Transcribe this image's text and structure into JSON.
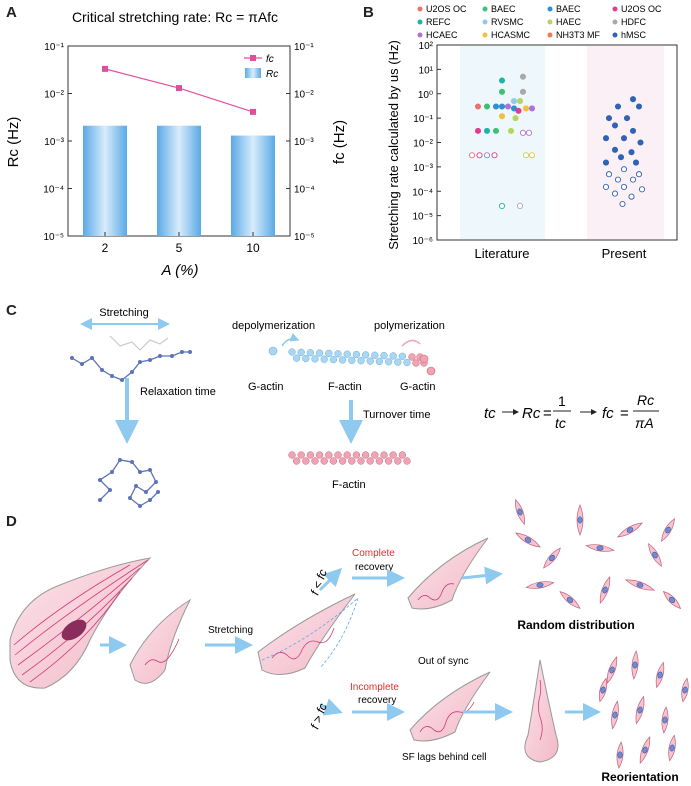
{
  "panel_labels": {
    "a": "A",
    "b": "B",
    "c": "C",
    "d": "D"
  },
  "chart_data": [
    {
      "type": "bar",
      "title": "Critical stretching rate: Rc = πAfc",
      "categories": [
        "2",
        "5",
        "10"
      ],
      "xlabel": "A (%)",
      "ylabel_left": "Rc (Hz)",
      "ylabel_right": "fc (Hz)",
      "yscale": "log",
      "ylim": [
        1e-05,
        0.1
      ],
      "yticks": [
        "10⁻⁵",
        "10⁻⁴",
        "10⁻³",
        "10⁻²",
        "10⁻¹"
      ],
      "legend_position": "top-right",
      "series": [
        {
          "name": "Rc",
          "type": "bar",
          "values": [
            0.0021,
            0.0021,
            0.0013
          ],
          "color": "#8fc6ee"
        },
        {
          "name": "fc",
          "type": "line",
          "values": [
            0.033,
            0.013,
            0.0041
          ],
          "color": "#e0509a"
        }
      ]
    },
    {
      "type": "scatter",
      "ylabel": "Stretching rate calculated by us (Hz)",
      "yscale": "log",
      "ylim": [
        1e-06,
        100
      ],
      "yticks": [
        "10⁻⁶",
        "10⁻⁵",
        "10⁻⁴",
        "10⁻³",
        "10⁻²",
        "10⁻¹",
        "10⁰",
        "10¹",
        "10²"
      ],
      "categories": [
        "Literature",
        "Present"
      ],
      "legend": [
        {
          "name": "U2OS OC",
          "color": "#e8736b"
        },
        {
          "name": "BAEC",
          "color": "#3fbf77"
        },
        {
          "name": "BAEC",
          "color": "#2f8fd1"
        },
        {
          "name": "U2OS OC",
          "color": "#e23d8d"
        },
        {
          "name": "REFC",
          "color": "#1fb3a8"
        },
        {
          "name": "RVSMC",
          "color": "#8ec9ef"
        },
        {
          "name": "HAEC",
          "color": "#b4d75a"
        },
        {
          "name": "HDFC",
          "color": "#a9a9a9"
        },
        {
          "name": "HCAEC",
          "color": "#b070d8"
        },
        {
          "name": "HCASMC",
          "color": "#f1c13c"
        },
        {
          "name": "NH3T3 MF",
          "color": "#f07a4f"
        },
        {
          "name": "hMSC",
          "color": "#2f63b3"
        }
      ],
      "literature_points": [
        {
          "x": -0.8,
          "y": 0.3,
          "c": "#e8736b",
          "f": 1
        },
        {
          "x": -0.5,
          "y": 0.3,
          "c": "#3fbf77",
          "f": 1
        },
        {
          "x": -0.2,
          "y": 0.3,
          "c": "#2f8fd1",
          "f": 1
        },
        {
          "x": 0.2,
          "y": 0.3,
          "c": "#b070d8",
          "f": 1
        },
        {
          "x": -0.8,
          "y": 0.03,
          "c": "#e23d8d",
          "f": 1
        },
        {
          "x": -0.5,
          "y": 0.03,
          "c": "#1fb3a8",
          "f": 1
        },
        {
          "x": -0.2,
          "y": 0.03,
          "c": "#3fbf77",
          "f": 1
        },
        {
          "x": 0,
          "y": 3.5,
          "c": "#1fb3a8",
          "f": 1
        },
        {
          "x": 0,
          "y": 1.2,
          "c": "#3fbf77",
          "f": 1
        },
        {
          "x": 0,
          "y": 0.3,
          "c": "#2f8fd1",
          "f": 1
        },
        {
          "x": 0,
          "y": 0.12,
          "c": "#f1c13c",
          "f": 1
        },
        {
          "x": 0.4,
          "y": 0.5,
          "c": "#8ec9ef",
          "f": 1
        },
        {
          "x": 0.6,
          "y": 0.5,
          "c": "#b4d75a",
          "f": 1
        },
        {
          "x": 0.4,
          "y": 0.25,
          "c": "#2f8fd1",
          "f": 1
        },
        {
          "x": 0.55,
          "y": 0.2,
          "c": "#e23d8d",
          "f": 1
        },
        {
          "x": 0.45,
          "y": 0.1,
          "c": "#b4d75a",
          "f": 1
        },
        {
          "x": 0.8,
          "y": 0.25,
          "c": "#f1c13c",
          "f": 1
        },
        {
          "x": 1.0,
          "y": 0.25,
          "c": "#b070d8",
          "f": 1
        },
        {
          "x": 0.7,
          "y": 5,
          "c": "#a9a9a9",
          "f": 1
        },
        {
          "x": 0.7,
          "y": 1.2,
          "c": "#a9a9a9",
          "f": 1
        },
        {
          "x": 0.3,
          "y": 0.03,
          "c": "#b4d75a",
          "f": 1
        },
        {
          "x": 0.7,
          "y": 0.025,
          "c": "#b070d8",
          "f": 0
        },
        {
          "x": 0.9,
          "y": 0.025,
          "c": "#b070d8",
          "f": 0
        },
        {
          "x": -1.0,
          "y": 0.003,
          "c": "#e8736b",
          "f": 0
        },
        {
          "x": -0.75,
          "y": 0.003,
          "c": "#e23d8d",
          "f": 0
        },
        {
          "x": -0.5,
          "y": 0.003,
          "c": "#b070d8",
          "f": 0
        },
        {
          "x": -0.25,
          "y": 0.003,
          "c": "#e23d8d",
          "f": 0
        },
        {
          "x": 0.8,
          "y": 0.003,
          "c": "#b4d75a",
          "f": 0
        },
        {
          "x": 1.0,
          "y": 0.003,
          "c": "#f1c13c",
          "f": 0
        },
        {
          "x": 0,
          "y": 2.5e-05,
          "c": "#1fb3a8",
          "f": 0
        },
        {
          "x": 0.6,
          "y": 2.5e-05,
          "c": "#a9a9a9",
          "f": 0
        }
      ],
      "present_points": [
        {
          "x": 0.3,
          "y": 0.6,
          "f": 1
        },
        {
          "x": -0.2,
          "y": 0.3,
          "f": 1
        },
        {
          "x": 0.5,
          "y": 0.3,
          "f": 1
        },
        {
          "x": -0.5,
          "y": 0.1,
          "f": 1
        },
        {
          "x": 0.1,
          "y": 0.1,
          "f": 1
        },
        {
          "x": -0.3,
          "y": 0.05,
          "f": 1
        },
        {
          "x": 0.3,
          "y": 0.03,
          "f": 1
        },
        {
          "x": -0.6,
          "y": 0.015,
          "f": 1
        },
        {
          "x": 0.0,
          "y": 0.015,
          "f": 1
        },
        {
          "x": 0.55,
          "y": 0.01,
          "f": 1
        },
        {
          "x": -0.3,
          "y": 0.005,
          "f": 1
        },
        {
          "x": 0.25,
          "y": 0.004,
          "f": 1
        },
        {
          "x": -0.1,
          "y": 0.0025,
          "f": 1
        },
        {
          "x": -0.6,
          "y": 0.0015,
          "f": 1
        },
        {
          "x": 0.4,
          "y": 0.0015,
          "f": 1
        },
        {
          "x": 0.0,
          "y": 0.0008,
          "f": 0
        },
        {
          "x": -0.5,
          "y": 0.0005,
          "f": 0
        },
        {
          "x": 0.5,
          "y": 0.0005,
          "f": 0
        },
        {
          "x": -0.2,
          "y": 0.0003,
          "f": 0
        },
        {
          "x": 0.3,
          "y": 0.0003,
          "f": 0
        },
        {
          "x": -0.6,
          "y": 0.00015,
          "f": 0
        },
        {
          "x": 0.0,
          "y": 0.00015,
          "f": 0
        },
        {
          "x": 0.6,
          "y": 0.00012,
          "f": 0
        },
        {
          "x": -0.3,
          "y": 8e-05,
          "f": 0
        },
        {
          "x": 0.25,
          "y": 6e-05,
          "f": 0
        },
        {
          "x": -0.05,
          "y": 3e-05,
          "f": 0
        }
      ]
    }
  ],
  "panel_c": {
    "stretching": "Stretching",
    "relaxation": "Relaxation time",
    "depolymerization": "depolymerization",
    "polymerization": "polymerization",
    "gactin_left": "G-actin",
    "factin_top": "F-actin",
    "gactin_right": "G-actin",
    "turnover": "Turnover time",
    "factin_bottom": "F-actin",
    "eq_tc": "tc",
    "eq_rc": "Rc",
    "eq_eq1": "=",
    "eq_one": "1",
    "eq_tc2": "tc",
    "eq_fc": "fc",
    "eq_eq2": "=",
    "eq_rc2": "Rc",
    "eq_pia": "πA"
  },
  "panel_d": {
    "stretching": "Stretching",
    "cond_low": "f < fc",
    "complete": "Complete",
    "recovery1": "recovery",
    "random": "Random distribution",
    "cond_high": "f > fc",
    "incomplete": "Incomplete",
    "recovery2": "recovery",
    "out_of_sync": "Out of sync",
    "sf_lags": "SF lags behind cell",
    "reorientation": "Reorientation"
  }
}
